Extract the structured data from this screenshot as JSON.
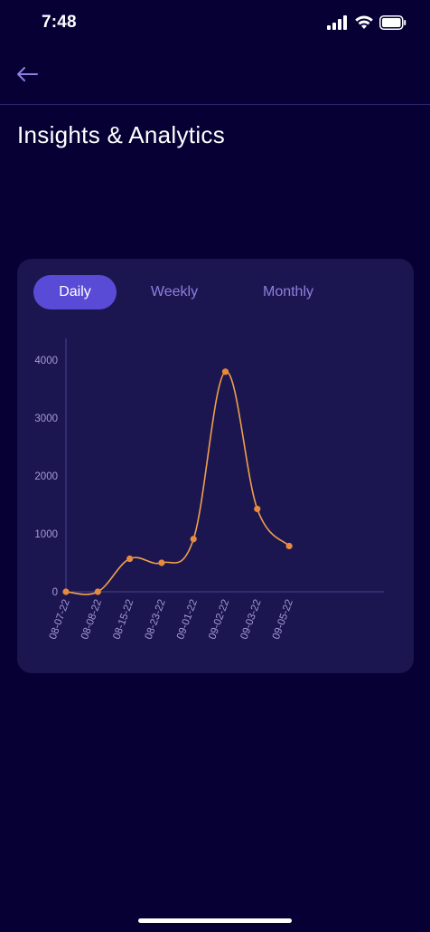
{
  "status_bar": {
    "time": "7:48"
  },
  "header": {
    "title": "Insights & Analytics"
  },
  "tabs": [
    {
      "label": "Daily",
      "active": true
    },
    {
      "label": "Weekly",
      "active": false
    },
    {
      "label": "Monthly",
      "active": false
    }
  ],
  "colors": {
    "background": "#070035",
    "card": "#1c1650",
    "accent": "#5a4bd6",
    "line": "#f0a04b"
  },
  "chart_data": {
    "type": "line",
    "categories": [
      "08-07-22",
      "08-08-22",
      "08-15-22",
      "08-23-22",
      "09-01-22",
      "09-02-22",
      "09-03-22",
      "09-05-22"
    ],
    "values": [
      0,
      0,
      570,
      500,
      910,
      3800,
      1430,
      790
    ],
    "ylim": [
      0,
      4000
    ],
    "yticks": [
      0,
      1000,
      2000,
      3000,
      4000
    ],
    "grid": false,
    "title": "",
    "xlabel": "",
    "ylabel": ""
  }
}
